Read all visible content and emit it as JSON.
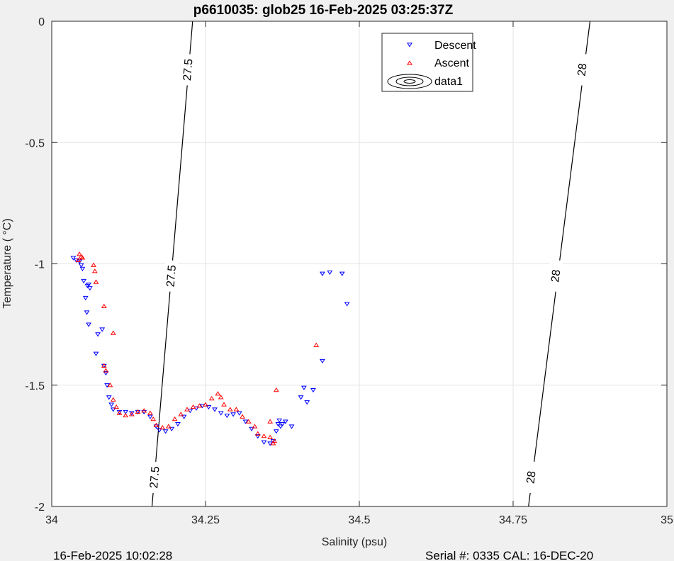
{
  "chart_data": {
    "type": "scatter",
    "title": "p6610035: glob25 16-Feb-2025 03:25:37Z",
    "xlabel": "Salinity (psu)",
    "ylabel": "Temperature (   °C)",
    "xlim": [
      34,
      35
    ],
    "ylim": [
      -2,
      0
    ],
    "xticks": [
      34,
      34.25,
      34.5,
      34.75,
      35
    ],
    "xtick_labels": [
      "34",
      "34.25",
      "34.5",
      "34.75",
      "35"
    ],
    "yticks": [
      0,
      -0.5,
      -1,
      -1.5,
      -2
    ],
    "ytick_labels": [
      "0",
      "-0.5",
      "-1",
      "-1.5",
      "-2"
    ],
    "grid": true,
    "legend_position": "top-right",
    "footer_left": "16-Feb-2025 10:02:28",
    "footer_right": "Serial #: 0335  CAL: 16-DEC-20",
    "series": [
      {
        "name": "Descent",
        "marker": "triangle-down",
        "color": "#0000ff",
        "points": [
          [
            34.035,
            -0.975
          ],
          [
            34.04,
            -0.985
          ],
          [
            34.045,
            -0.99
          ],
          [
            34.048,
            -1.005
          ],
          [
            34.05,
            -1.02
          ],
          [
            34.052,
            -1.07
          ],
          [
            34.058,
            -1.09
          ],
          [
            34.06,
            -1.085
          ],
          [
            34.062,
            -1.1
          ],
          [
            34.055,
            -1.14
          ],
          [
            34.057,
            -1.2
          ],
          [
            34.06,
            -1.25
          ],
          [
            34.075,
            -1.29
          ],
          [
            34.082,
            -1.27
          ],
          [
            34.072,
            -1.37
          ],
          [
            34.085,
            -1.42
          ],
          [
            34.088,
            -1.45
          ],
          [
            34.09,
            -1.5
          ],
          [
            34.093,
            -1.55
          ],
          [
            34.097,
            -1.58
          ],
          [
            34.1,
            -1.6
          ],
          [
            34.11,
            -1.61
          ],
          [
            34.12,
            -1.61
          ],
          [
            34.13,
            -1.615
          ],
          [
            34.14,
            -1.61
          ],
          [
            34.15,
            -1.61
          ],
          [
            34.16,
            -1.63
          ],
          [
            34.17,
            -1.67
          ],
          [
            34.175,
            -1.685
          ],
          [
            34.185,
            -1.69
          ],
          [
            34.195,
            -1.68
          ],
          [
            34.205,
            -1.66
          ],
          [
            34.215,
            -1.63
          ],
          [
            34.225,
            -1.605
          ],
          [
            34.235,
            -1.595
          ],
          [
            34.245,
            -1.585
          ],
          [
            34.255,
            -1.59
          ],
          [
            34.265,
            -1.6
          ],
          [
            34.275,
            -1.615
          ],
          [
            34.285,
            -1.625
          ],
          [
            34.295,
            -1.62
          ],
          [
            34.305,
            -1.615
          ],
          [
            34.315,
            -1.65
          ],
          [
            34.325,
            -1.68
          ],
          [
            34.335,
            -1.71
          ],
          [
            34.345,
            -1.735
          ],
          [
            34.355,
            -1.74
          ],
          [
            34.36,
            -1.73
          ],
          [
            34.365,
            -1.69
          ],
          [
            34.368,
            -1.66
          ],
          [
            34.37,
            -1.645
          ],
          [
            34.372,
            -1.67
          ],
          [
            34.375,
            -1.66
          ],
          [
            34.38,
            -1.65
          ],
          [
            34.39,
            -1.67
          ],
          [
            34.41,
            -1.51
          ],
          [
            34.405,
            -1.55
          ],
          [
            34.415,
            -1.57
          ],
          [
            34.425,
            -1.52
          ],
          [
            34.44,
            -1.4
          ],
          [
            34.44,
            -1.04
          ],
          [
            34.452,
            -1.035
          ],
          [
            34.472,
            -1.04
          ],
          [
            34.48,
            -1.165
          ]
        ]
      },
      {
        "name": "Ascent",
        "marker": "triangle-up",
        "color": "#ff0000",
        "points": [
          [
            34.045,
            -0.96
          ],
          [
            34.048,
            -0.97
          ],
          [
            34.05,
            -0.975
          ],
          [
            34.043,
            -0.985
          ],
          [
            34.068,
            -1.005
          ],
          [
            34.07,
            -1.03
          ],
          [
            34.072,
            -1.075
          ],
          [
            34.085,
            -1.175
          ],
          [
            34.1,
            -1.285
          ],
          [
            34.085,
            -1.42
          ],
          [
            34.088,
            -1.44
          ],
          [
            34.095,
            -1.5
          ],
          [
            34.1,
            -1.56
          ],
          [
            34.105,
            -1.59
          ],
          [
            34.11,
            -1.615
          ],
          [
            34.12,
            -1.625
          ],
          [
            34.13,
            -1.62
          ],
          [
            34.14,
            -1.61
          ],
          [
            34.15,
            -1.605
          ],
          [
            34.16,
            -1.615
          ],
          [
            34.165,
            -1.64
          ],
          [
            34.17,
            -1.665
          ],
          [
            34.18,
            -1.675
          ],
          [
            34.19,
            -1.67
          ],
          [
            34.2,
            -1.64
          ],
          [
            34.21,
            -1.62
          ],
          [
            34.22,
            -1.6
          ],
          [
            34.23,
            -1.59
          ],
          [
            34.24,
            -1.585
          ],
          [
            34.25,
            -1.58
          ],
          [
            34.26,
            -1.555
          ],
          [
            34.27,
            -1.535
          ],
          [
            34.275,
            -1.55
          ],
          [
            34.28,
            -1.58
          ],
          [
            34.29,
            -1.6
          ],
          [
            34.3,
            -1.6
          ],
          [
            34.31,
            -1.63
          ],
          [
            34.32,
            -1.65
          ],
          [
            34.33,
            -1.67
          ],
          [
            34.335,
            -1.7
          ],
          [
            34.345,
            -1.71
          ],
          [
            34.355,
            -1.715
          ],
          [
            34.36,
            -1.74
          ],
          [
            34.362,
            -1.73
          ],
          [
            34.355,
            -1.65
          ],
          [
            34.365,
            -1.52
          ],
          [
            34.43,
            -1.335
          ]
        ]
      }
    ],
    "contours": [
      {
        "name": "data1",
        "level_label": "27.5",
        "color": "#000000",
        "x": [
          34.163,
          34.229
        ],
        "y": [
          -2,
          0
        ],
        "label_points": [
          [
            34.222,
            -0.2
          ],
          [
            34.195,
            -1.05
          ],
          [
            34.168,
            -1.88
          ]
        ]
      },
      {
        "name": "data1",
        "level_label": "28",
        "color": "#000000",
        "x": [
          34.775,
          34.875
        ],
        "y": [
          -2,
          0
        ],
        "label_points": [
          [
            34.863,
            -0.2
          ],
          [
            34.82,
            -1.05
          ],
          [
            34.78,
            -1.88
          ]
        ]
      }
    ]
  }
}
